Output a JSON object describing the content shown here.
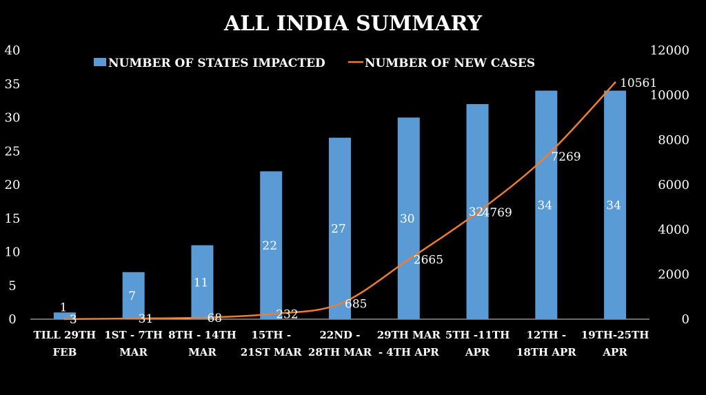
{
  "chart_data": {
    "type": "bar+line",
    "title": "ALL INDIA  SUMMARY",
    "categories": [
      [
        "TILL 29TH",
        "FEB"
      ],
      [
        "1ST - 7TH",
        "MAR"
      ],
      [
        "8TH - 14TH",
        "MAR"
      ],
      [
        "15TH -",
        "21ST MAR"
      ],
      [
        "22ND -",
        "28TH MAR"
      ],
      [
        "29TH MAR",
        "- 4TH APR"
      ],
      [
        "5TH -11TH",
        "APR"
      ],
      [
        "12TH -",
        "18TH APR"
      ],
      [
        "19TH-25TH",
        "APR"
      ]
    ],
    "series": [
      {
        "name": "NUMBER OF STATES IMPACTED",
        "type": "bar",
        "axis": "left",
        "color": "#5B9BD5",
        "values": [
          1,
          7,
          11,
          22,
          27,
          30,
          32,
          34,
          34
        ]
      },
      {
        "name": "NUMBER OF NEW CASES",
        "type": "line",
        "axis": "right",
        "color": "#ED7D31",
        "values": [
          3,
          31,
          68,
          232,
          685,
          2665,
          4769,
          7269,
          10561
        ]
      }
    ],
    "y_left": {
      "ylim": [
        0,
        40
      ],
      "ticks": [
        0,
        5,
        10,
        15,
        20,
        25,
        30,
        35,
        40
      ]
    },
    "y_right": {
      "ylim": [
        0,
        12000
      ],
      "ticks": [
        0,
        2000,
        4000,
        6000,
        8000,
        10000,
        12000
      ]
    },
    "legend": "top",
    "grid": false,
    "background": "#000000"
  }
}
